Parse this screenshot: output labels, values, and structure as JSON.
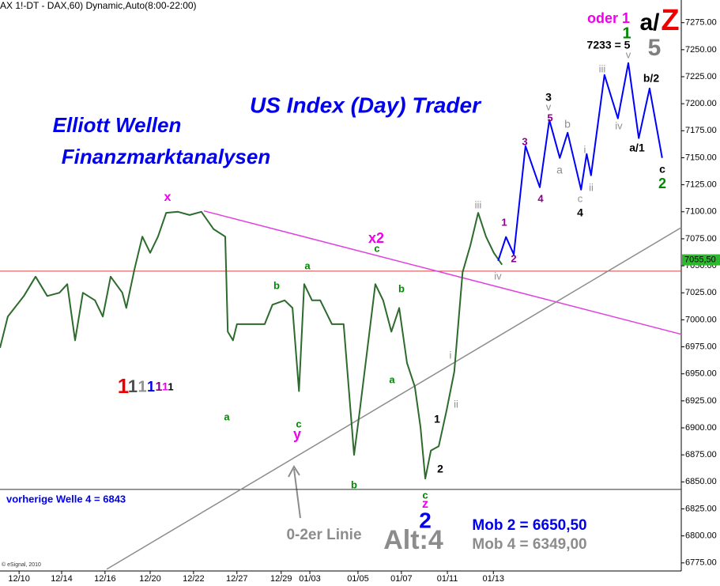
{
  "chart_data": {
    "type": "line",
    "title": "(AX 1!-DT - DAX,60) Dynamic,Auto(8:00-22:00)",
    "source": "© eSignal, 2010",
    "xlim": [
      0,
      157
    ],
    "ylim": [
      6769,
      7296
    ],
    "xticks": [
      {
        "value": 4.4,
        "label": "12/10"
      },
      {
        "value": 14.2,
        "label": "12/14"
      },
      {
        "value": 24.2,
        "label": "12/16"
      },
      {
        "value": 34.6,
        "label": "12/20"
      },
      {
        "value": 44.6,
        "label": "12/22"
      },
      {
        "value": 54.6,
        "label": "12/27"
      },
      {
        "value": 64.8,
        "label": "12/29"
      },
      {
        "value": 71.4,
        "label": "01/03"
      },
      {
        "value": 82.5,
        "label": "01/05"
      },
      {
        "value": 92.5,
        "label": "01/07"
      },
      {
        "value": 103.1,
        "label": "01/11"
      },
      {
        "value": 113.7,
        "label": "01/13"
      }
    ],
    "yticks": [
      {
        "value": 6775,
        "label": "6775.00"
      },
      {
        "value": 6800,
        "label": "6800.00"
      },
      {
        "value": 6825,
        "label": "6825.00"
      },
      {
        "value": 6850,
        "label": "6850.00"
      },
      {
        "value": 6875,
        "label": "6875.00"
      },
      {
        "value": 6900,
        "label": "6900.00"
      },
      {
        "value": 6925,
        "label": "6925.00"
      },
      {
        "value": 6950,
        "label": "6950.00"
      },
      {
        "value": 6975,
        "label": "6975.00"
      },
      {
        "value": 7000,
        "label": "7000.00"
      },
      {
        "value": 7025,
        "label": "7025.00"
      },
      {
        "value": 7050,
        "label": "7050.00"
      },
      {
        "value": 7075,
        "label": "7075.00"
      },
      {
        "value": 7100,
        "label": "7100.00"
      },
      {
        "value": 7125,
        "label": "7125.00"
      },
      {
        "value": 7150,
        "label": "7150.00"
      },
      {
        "value": 7175,
        "label": "7175.00"
      },
      {
        "value": 7200,
        "label": "7200.00"
      },
      {
        "value": 7225,
        "label": "7225.00"
      },
      {
        "value": 7250,
        "label": "7250.00"
      },
      {
        "value": 7275,
        "label": "7275.00"
      }
    ],
    "series": [
      {
        "color": "#2d6b2d",
        "x": [
          0,
          1.8,
          5.5,
          8.2,
          10.9,
          13.7,
          15.5,
          17.3,
          19.1,
          21.9,
          23.7,
          25.5,
          28.2,
          29.1,
          31,
          32.8,
          34.6,
          36.4,
          38.3,
          41,
          43.7,
          46.4,
          49.2,
          51.9,
          52.5,
          53.7,
          54.6,
          58.3,
          61,
          62.8,
          65.6,
          67.4,
          68.9,
          70.1,
          71.9,
          73.8,
          76.5,
          79.2,
          81.6,
          82.9,
          84.7,
          86.5,
          88.3,
          90.2,
          92,
          93.8,
          95.6,
          96.9,
          98,
          99.3,
          101.1,
          102.9,
          104.7,
          106.6,
          108.4,
          110.2,
          112,
          113.8,
          115.7
        ],
        "values": [
          6974,
          7003,
          7022,
          7040,
          7022,
          7025,
          7033,
          6981,
          7025,
          7018,
          7003,
          7040,
          7025,
          7011,
          7047,
          7077,
          7062,
          7077,
          7099,
          7100,
          7097,
          7100,
          7084,
          7077,
          6989,
          6981,
          6996,
          6996,
          6996,
          7014,
          7018,
          7011,
          6934,
          7033,
          7018,
          7018,
          6996,
          6996,
          6875,
          6916,
          6974,
          7033,
          7018,
          6989,
          7011,
          6960,
          6938,
          6901,
          6853,
          6879,
          6883,
          6916,
          6952,
          7044,
          7069,
          7099,
          7077,
          7062,
          7051
        ]
      },
      {
        "color": "#0000ff",
        "x": [
          114.8,
          116.6,
          118.4,
          121.1,
          123,
          124.4,
          126.6,
          129,
          130.8,
          133.9,
          135.2,
          136.2,
          139.3,
          142.4,
          144.8,
          147.2,
          149.7,
          152.6
        ],
        "values": [
          7054.6,
          7076.6,
          7060.5,
          7160.8,
          7138.8,
          7122.7,
          7185,
          7149.8,
          7173.2,
          7120.5,
          7153.5,
          7133.7,
          7226.7,
          7186.4,
          7237.7,
          7168.1,
          7214.2,
          7149.8
        ]
      }
    ],
    "trendlines": [
      {
        "color": "#e040e0",
        "x": [
          47,
          157
        ],
        "y": [
          7100.8,
          6986.6
        ]
      },
      {
        "color": "#8c8c8c",
        "x": [
          24.6,
          157
        ],
        "y": [
          6769.2,
          7085.4
        ]
      }
    ],
    "hlines": [
      {
        "value": 7045,
        "color": "#d04040"
      },
      {
        "value": 6843,
        "color": "#303030"
      }
    ],
    "last_price": {
      "value": 7055.5,
      "label": "7055,50",
      "color": "#2db82d"
    },
    "annotations": [
      {
        "text": "US Index (Day) Trader",
        "color": "#0000ee"
      },
      {
        "text": "Elliott Wellen",
        "color": "#0000ee"
      },
      {
        "text": "Finanzmarktanalysen",
        "color": "#0000ee"
      },
      {
        "text": "vorherige Welle 4 = 6843",
        "color": "#0000ee"
      },
      {
        "text": "0-2er Linie",
        "color": "#8c8c8c"
      },
      {
        "text": "Alt:4",
        "color": "#8c8c8c"
      },
      {
        "text": "Mob 2 = 6650,50",
        "color": "#0000ee"
      },
      {
        "text": "Mob 4 = 6349,00",
        "color": "#8c8c8c"
      },
      {
        "text": "oder 1",
        "color": "#ee00ee"
      },
      {
        "text": "a/",
        "color": "#000000"
      },
      {
        "text": "Z",
        "color": "#ee0000"
      },
      {
        "text": "1",
        "color": "#008800"
      },
      {
        "text": "7233 = 5",
        "color": "#000000"
      },
      {
        "text": "5",
        "color": "#808080"
      },
      {
        "text": "iii",
        "color": "#909090"
      },
      {
        "text": "v",
        "color": "#909090"
      },
      {
        "text": "b/2",
        "color": "#000000"
      },
      {
        "text": "3",
        "color": "#000000"
      },
      {
        "text": "v",
        "color": "#909090"
      },
      {
        "text": "5",
        "color": "#8b008b"
      },
      {
        "text": "b",
        "color": "#909090"
      },
      {
        "text": "3",
        "color": "#8b008b"
      },
      {
        "text": "iv",
        "color": "#909090"
      },
      {
        "text": "i",
        "color": "#909090"
      },
      {
        "text": "a/1",
        "color": "#000000"
      },
      {
        "text": "a",
        "color": "#909090"
      },
      {
        "text": "c",
        "color": "#000000"
      },
      {
        "text": "2",
        "color": "#008800"
      },
      {
        "text": "4",
        "color": "#8b008b"
      },
      {
        "text": "c",
        "color": "#909090"
      },
      {
        "text": "ii",
        "color": "#909090"
      },
      {
        "text": "4",
        "color": "#000000"
      },
      {
        "text": "iii",
        "color": "#909090"
      },
      {
        "text": "1",
        "color": "#8b008b"
      },
      {
        "text": "2",
        "color": "#8b008b"
      },
      {
        "text": "iv",
        "color": "#909090"
      },
      {
        "text": "x",
        "color": "#ee00ee"
      },
      {
        "text": "x2",
        "color": "#ee00ee"
      },
      {
        "text": "c",
        "color": "#008800"
      },
      {
        "text": "a",
        "color": "#008800"
      },
      {
        "text": "b",
        "color": "#008800"
      },
      {
        "text": "b",
        "color": "#008800"
      },
      {
        "text": "i",
        "color": "#909090"
      },
      {
        "text": "a",
        "color": "#008800"
      },
      {
        "text": "1",
        "color": "#000000"
      },
      {
        "text": "ii",
        "color": "#909090"
      },
      {
        "text": "a",
        "color": "#008800"
      },
      {
        "text": "c",
        "color": "#008800"
      },
      {
        "text": "y",
        "color": "#ee00ee"
      },
      {
        "text": "2",
        "color": "#000000"
      },
      {
        "text": "b",
        "color": "#008800"
      },
      {
        "text": "c",
        "color": "#008800"
      },
      {
        "text": "z",
        "color": "#ee00ee"
      },
      {
        "text": "2",
        "color": "#0000ee"
      },
      {
        "text": "1",
        "color": "#ee0000"
      },
      {
        "text": "1",
        "color": "#505050"
      },
      {
        "text": "1",
        "color": "#909090"
      },
      {
        "text": "1",
        "color": "#0000ee"
      },
      {
        "text": "1",
        "color": "#8b008b"
      },
      {
        "text": "1",
        "color": "#ee00ee"
      },
      {
        "text": "1",
        "color": "#000000"
      }
    ]
  }
}
